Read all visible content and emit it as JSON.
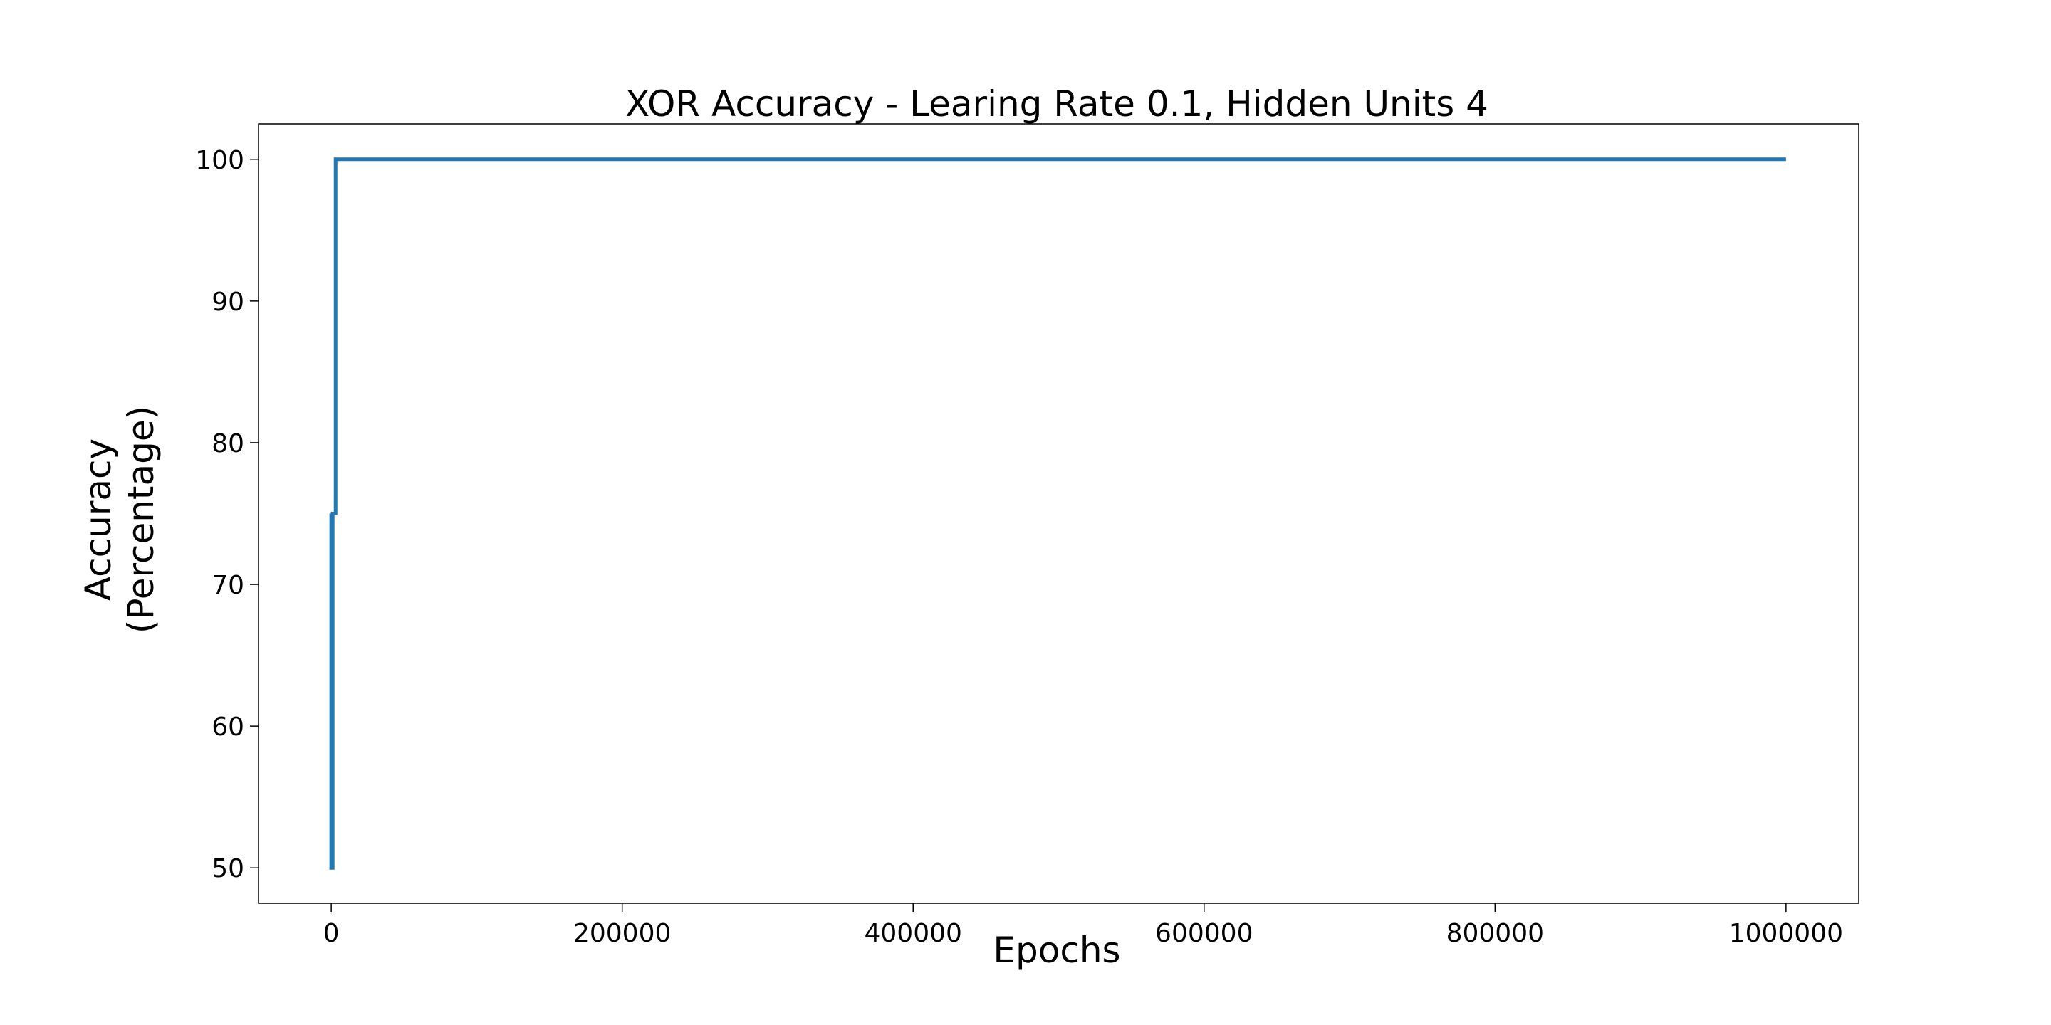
{
  "chart_data": {
    "type": "line",
    "title": "XOR Accuracy - Learing Rate 0.1, Hidden Units 4",
    "xlabel": "Epochs",
    "ylabel": [
      "Accuracy",
      "(Percentage)"
    ],
    "xlim": [
      -50000,
      1050000
    ],
    "ylim": [
      47.5,
      102.5
    ],
    "xticks": [
      0,
      200000,
      400000,
      600000,
      800000,
      1000000
    ],
    "xtick_labels": [
      "0",
      "200000",
      "400000",
      "600000",
      "800000",
      "1000000"
    ],
    "yticks": [
      50,
      60,
      70,
      80,
      90,
      100
    ],
    "ytick_labels": [
      "50",
      "60",
      "70",
      "80",
      "90",
      "100"
    ],
    "grid": false,
    "line_color": "#1f77b4",
    "series": [
      {
        "x": [
          0,
          0,
          1000,
          1000,
          2000,
          2000,
          3000,
          3000,
          1000000
        ],
        "y": [
          75,
          50,
          50,
          75,
          75,
          75,
          75,
          100,
          100
        ]
      }
    ]
  }
}
